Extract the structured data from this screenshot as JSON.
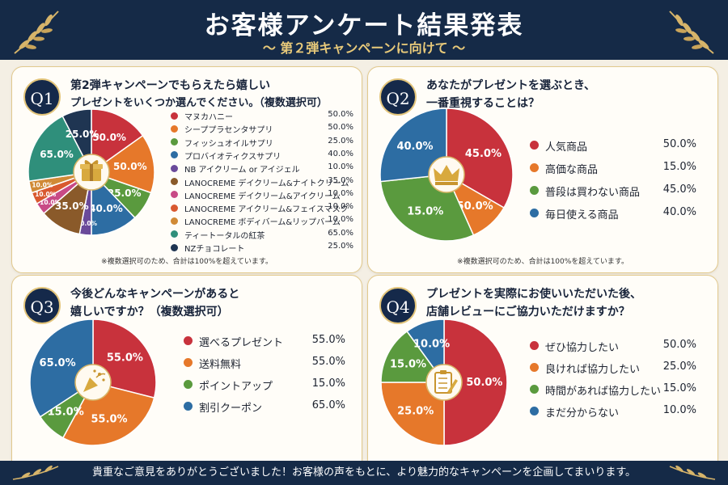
{
  "header": {
    "title": "お客様アンケート結果発表",
    "subtitle": "〜 第２弾キャンペーンに向けて 〜"
  },
  "note": "※複数選択可のため、合計は100%を超えています。",
  "footer": "貴重なご意見をありがとうございました！お客様の声をもとに、より魅力的なキャンペーンを企画してまいります。",
  "icons": {
    "q1": "gift-icon",
    "q2": "crown-icon",
    "q3": "party-popper-icon",
    "q4": "clipboard-pen-icon"
  },
  "chart_data": [
    {
      "id": "q1",
      "type": "pie",
      "badge": "Q1",
      "title_lines": [
        "第2弾キャンペーンでもらえたら嬉しい",
        "プレゼントをいくつか選んでください。（複数選択可）"
      ],
      "categories": [
        "マヌカハニー",
        "シーププラセンタサプリ",
        "フィッシュオイルサプリ",
        "プロバイオティクスサプリ",
        "NB アイクリーム or アイジェル",
        "LANOCREME デイクリーム&ナイトクリーム",
        "LANOCREME デイクリーム&アイクリーム",
        "LANOCREME アイクリーム&フェイスマスク",
        "LANOCREME ボディバーム&リップバーム",
        "ティートータルの紅茶",
        "NZチョコレート"
      ],
      "values": [
        50.0,
        50.0,
        25.0,
        40.0,
        10.0,
        35.0,
        10.0,
        10.0,
        10.0,
        65.0,
        25.0
      ],
      "labels": [
        "50.0%",
        "50.0%",
        "25.0%",
        "40.0%",
        "10.0%",
        "35.0%",
        "10.0%",
        "10.0%",
        "10.0%",
        "65.0%",
        "25.0%"
      ],
      "colors": [
        "#c8323c",
        "#e6782a",
        "#5a9a3e",
        "#2d6da3",
        "#6a4a9a",
        "#8a5a2a",
        "#c84a86",
        "#d9592f",
        "#d08a36",
        "#2f8f7b",
        "#1f3552"
      ],
      "has_note": true
    },
    {
      "id": "q2",
      "type": "pie",
      "badge": "Q2",
      "title_lines": [
        "あなたがプレゼントを選ぶとき、",
        "一番重視することは？"
      ],
      "categories": [
        "人気商品",
        "高価な商品",
        "普段は買わない商品",
        "毎日使える商品"
      ],
      "values": [
        50.0,
        15.0,
        45.0,
        40.0
      ],
      "labels": [
        "50.0%",
        "15.0%",
        "45.0%",
        "40.0%"
      ],
      "pie_labels": [
        "45.0%",
        "50.0%",
        "15.0%",
        "40.0%"
      ],
      "colors": [
        "#c8323c",
        "#e6782a",
        "#5a9a3e",
        "#2d6da3"
      ],
      "has_note": true
    },
    {
      "id": "q3",
      "type": "pie",
      "badge": "Q3",
      "title_lines": [
        "今後どんなキャンペーンがあると",
        "嬉しいですか？（複数選択可）"
      ],
      "categories": [
        "選べるプレゼント",
        "送料無料",
        "ポイントアップ",
        "割引クーポン"
      ],
      "values": [
        55.0,
        55.0,
        15.0,
        65.0
      ],
      "labels": [
        "55.0%",
        "55.0%",
        "15.0%",
        "65.0%"
      ],
      "colors": [
        "#c8323c",
        "#e6782a",
        "#5a9a3e",
        "#2d6da3"
      ],
      "has_note": true
    },
    {
      "id": "q4",
      "type": "pie",
      "badge": "Q4",
      "title_lines": [
        "プレゼントを実際にお使いいただいた後、",
        "店舗レビューにご協力いただけますか？"
      ],
      "categories": [
        "ぜひ協力したい",
        "良ければ協力したい",
        "時間があれば協力したい",
        "まだ分からない"
      ],
      "values": [
        50.0,
        25.0,
        15.0,
        10.0
      ],
      "labels": [
        "50.0%",
        "25.0%",
        "15.0%",
        "10.0%"
      ],
      "colors": [
        "#c8323c",
        "#e6782a",
        "#5a9a3e",
        "#2d6da3"
      ],
      "has_note": true
    }
  ]
}
